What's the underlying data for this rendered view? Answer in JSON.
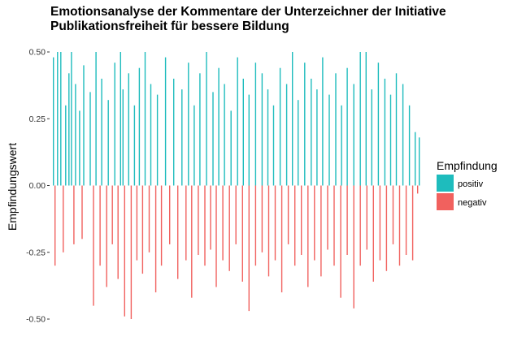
{
  "chart_data": {
    "type": "bar",
    "title": "Emotionsanalyse der Kommentare der Unterzeichner der Initiative\nPublikationsfreiheit für bessere Bildung",
    "xlabel": "",
    "ylabel": "Empfindungswert",
    "ylim": [
      -0.5,
      0.5
    ],
    "yticks": [
      "-0.50",
      "-0.25",
      "0.00",
      "0.25",
      "0.50"
    ],
    "grid": false,
    "legend": {
      "title": "Empfindung",
      "position": "right",
      "entries": [
        {
          "label": "positiv",
          "color": "#1ebcbd"
        },
        {
          "label": "negativ",
          "color": "#f1615e"
        }
      ]
    },
    "series": [
      {
        "name": "positiv",
        "color": "#1ebcbd",
        "x": [
          3,
          8,
          12,
          18,
          22,
          25,
          30,
          35,
          40,
          48,
          55,
          62,
          70,
          78,
          85,
          88,
          95,
          102,
          108,
          115,
          122,
          130,
          140,
          150,
          160,
          168,
          175,
          182,
          190,
          198,
          205,
          212,
          220,
          228,
          235,
          242,
          250,
          258,
          265,
          272,
          280,
          288,
          295,
          302,
          310,
          318,
          325,
          332,
          340,
          348,
          355,
          362,
          370,
          378,
          385,
          392,
          400,
          408,
          415,
          422,
          430,
          438,
          445,
          450
        ],
        "values": [
          0.48,
          0.5,
          0.5,
          0.3,
          0.42,
          0.5,
          0.38,
          0.28,
          0.45,
          0.35,
          0.5,
          0.4,
          0.32,
          0.46,
          0.5,
          0.36,
          0.42,
          0.3,
          0.44,
          0.5,
          0.38,
          0.34,
          0.48,
          0.4,
          0.36,
          0.46,
          0.3,
          0.42,
          0.5,
          0.35,
          0.44,
          0.38,
          0.28,
          0.48,
          0.4,
          0.34,
          0.46,
          0.42,
          0.36,
          0.3,
          0.44,
          0.38,
          0.5,
          0.32,
          0.46,
          0.4,
          0.36,
          0.48,
          0.34,
          0.42,
          0.3,
          0.44,
          0.38,
          0.5,
          0.5,
          0.36,
          0.46,
          0.4,
          0.34,
          0.42,
          0.38,
          0.3,
          0.2,
          0.18
        ]
      },
      {
        "name": "negativ",
        "color": "#f1615e",
        "x": [
          5,
          15,
          28,
          38,
          52,
          60,
          68,
          75,
          82,
          90,
          98,
          105,
          112,
          120,
          128,
          135,
          145,
          155,
          165,
          172,
          180,
          188,
          195,
          202,
          210,
          218,
          226,
          234,
          242,
          250,
          258,
          266,
          274,
          282,
          290,
          298,
          306,
          314,
          322,
          330,
          338,
          346,
          354,
          362,
          370,
          378,
          386,
          394,
          402,
          410,
          418,
          426,
          434,
          442,
          448
        ],
        "values": [
          -0.3,
          -0.25,
          -0.22,
          -0.2,
          -0.45,
          -0.3,
          -0.38,
          -0.22,
          -0.35,
          -0.49,
          -0.5,
          -0.28,
          -0.33,
          -0.25,
          -0.4,
          -0.3,
          -0.22,
          -0.35,
          -0.28,
          -0.42,
          -0.26,
          -0.3,
          -0.24,
          -0.38,
          -0.28,
          -0.32,
          -0.22,
          -0.36,
          -0.47,
          -0.3,
          -0.25,
          -0.34,
          -0.28,
          -0.4,
          -0.22,
          -0.3,
          -0.26,
          -0.38,
          -0.28,
          -0.34,
          -0.24,
          -0.3,
          -0.42,
          -0.26,
          -0.46,
          -0.3,
          -0.24,
          -0.36,
          -0.28,
          -0.32,
          -0.22,
          -0.3,
          -0.26,
          -0.28,
          -0.03
        ]
      }
    ]
  }
}
